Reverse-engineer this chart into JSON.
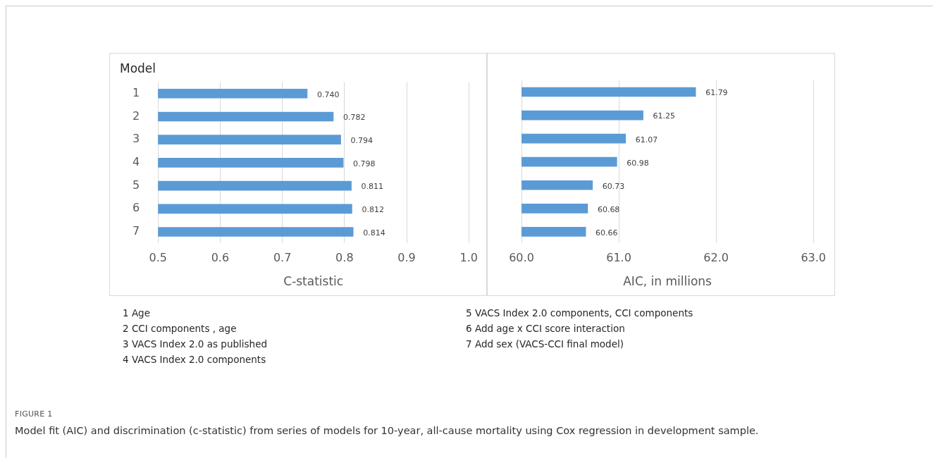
{
  "chart_data": [
    {
      "type": "bar",
      "orientation": "horizontal",
      "ylabel": "Model",
      "xlabel": "C-statistic",
      "categories": [
        "1",
        "2",
        "3",
        "4",
        "5",
        "6",
        "7"
      ],
      "series": [
        {
          "color": "#5b9bd5",
          "values": [
            0.74,
            0.782,
            0.794,
            0.798,
            0.811,
            0.812,
            0.814
          ],
          "value_labels": [
            "0.740",
            "0.782",
            "0.794",
            "0.798",
            "0.811",
            "0.812",
            "0.814"
          ]
        }
      ],
      "xlim": [
        0.5,
        1.0
      ],
      "xticks": [
        0.5,
        0.6,
        0.7,
        0.8,
        0.9,
        {
          "value": 1.0,
          "label": "1.0"
        }
      ],
      "grid": "x",
      "legend": false,
      "annotations": [
        "1 Age",
        "2 CCI components , age",
        "3 VACS Index 2.0 as published",
        "4 VACS Index 2.0 components",
        "5 VACS Index 2.0 components, CCI components",
        "6 Add age x CCI score interaction",
        "7 Add sex (VACS-CCI final model)",
        "FIGURE 1",
        "Model fit (AIC) and discrimination (c-statistic) from series of models for 10-year, all-cause mortality using Cox regression in development sample."
      ]
    },
    {
      "type": "bar",
      "orientation": "horizontal",
      "xlabel": "AIC, in millions",
      "categories": [
        "1",
        "2",
        "3",
        "4",
        "5",
        "6",
        "7"
      ],
      "series": [
        {
          "color": "#5b9bd5",
          "values": [
            61.79,
            61.25,
            61.07,
            60.98,
            60.73,
            60.68,
            60.66
          ],
          "value_labels": [
            "61.79",
            "61.25",
            "61.07",
            "60.98",
            "60.73",
            "60.68",
            "60.66"
          ]
        }
      ],
      "xlim": [
        60,
        63
      ],
      "xticks": [
        {
          "value": 60,
          "label": "60.0"
        },
        {
          "value": 61,
          "label": "61.0"
        },
        {
          "value": 62,
          "label": "62.0"
        },
        {
          "value": 63,
          "label": "63.0"
        }
      ],
      "grid": "x",
      "legend": false,
      "tick_labels": "x"
    }
  ]
}
